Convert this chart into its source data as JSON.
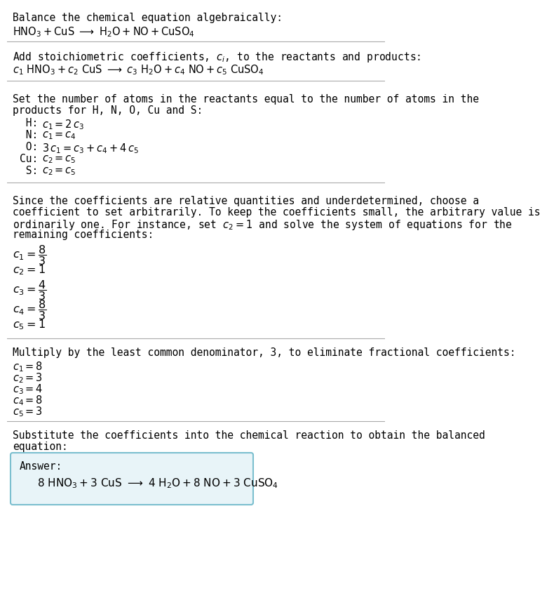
{
  "bg_color": "#ffffff",
  "text_color": "#000000",
  "line_color": "#aaaaaa",
  "answer_bg": "#e8f4f8",
  "answer_border": "#7bbfcf",
  "font_size": 10.5,
  "math_font_size": 10.5,
  "section1_title": "Balance the chemical equation algebraically:",
  "section1_eq": "$\\mathrm{HNO_3} + \\mathrm{CuS}\\ \\longrightarrow\\ \\mathrm{H_2O} + \\mathrm{NO} + \\mathrm{CuSO_4}$",
  "section2_title": "Add stoichiometric coefficients, $c_i$, to the reactants and products:",
  "section2_eq": "$c_1\\ \\mathrm{HNO_3} + c_2\\ \\mathrm{CuS}\\ \\longrightarrow\\ c_3\\ \\mathrm{H_2O} + c_4\\ \\mathrm{NO} + c_5\\ \\mathrm{CuSO_4}$",
  "section3_title1": "Set the number of atoms in the reactants equal to the number of atoms in the",
  "section3_title2": "products for H, N, O, Cu and S:",
  "section3_eqs": [
    [
      " H:",
      "$c_1 = 2\\,c_3$"
    ],
    [
      " N:",
      "$c_1 = c_4$"
    ],
    [
      " O:",
      "$3\\,c_1 = c_3 + c_4 + 4\\,c_5$"
    ],
    [
      "Cu:",
      "$c_2 = c_5$"
    ],
    [
      " S:",
      "$c_2 = c_5$"
    ]
  ],
  "section4_text1": "Since the coefficients are relative quantities and underdetermined, choose a",
  "section4_text2": "coefficient to set arbitrarily. To keep the coefficients small, the arbitrary value is",
  "section4_text3": "ordinarily one. For instance, set $c_2 = 1$ and solve the system of equations for the",
  "section4_text4": "remaining coefficients:",
  "section4_fracs": [
    "$c_1 = \\dfrac{8}{3}$",
    "$c_2 = 1$",
    "$c_3 = \\dfrac{4}{3}$",
    "$c_4 = \\dfrac{8}{3}$",
    "$c_5 = 1$"
  ],
  "section5_title": "Multiply by the least common denominator, 3, to eliminate fractional coefficients:",
  "section5_ints": [
    "$c_1 = 8$",
    "$c_2 = 3$",
    "$c_3 = 4$",
    "$c_4 = 8$",
    "$c_5 = 3$"
  ],
  "section6_title1": "Substitute the coefficients into the chemical reaction to obtain the balanced",
  "section6_title2": "equation:",
  "answer_label": "Answer:",
  "answer_eq": "$8\\ \\mathrm{HNO_3} + 3\\ \\mathrm{CuS}\\ \\longrightarrow\\ 4\\ \\mathrm{H_2O} + 8\\ \\mathrm{NO} + 3\\ \\mathrm{CuSO_4}$"
}
